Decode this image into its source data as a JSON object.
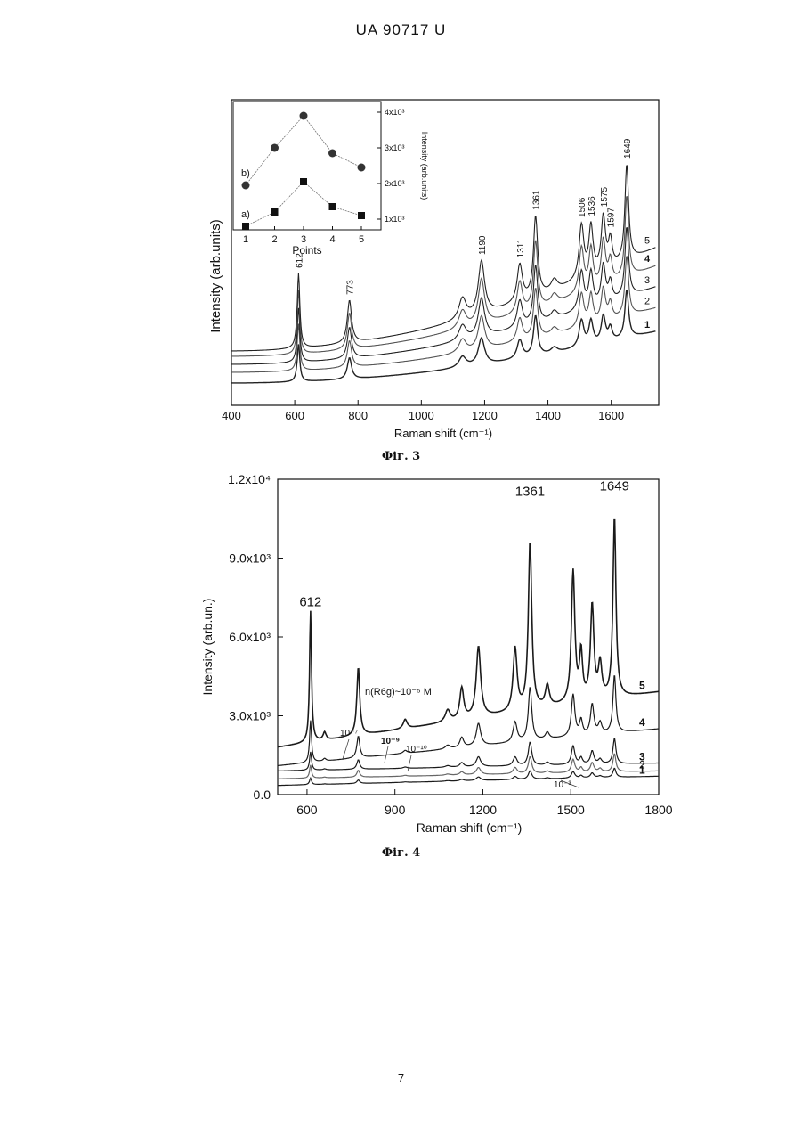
{
  "header": {
    "doc_id": "UA   90717   U"
  },
  "page_number": "7",
  "figures": [
    {
      "caption": "Фіг. 3"
    },
    {
      "caption": "Фіг. 4"
    }
  ],
  "chart_data": [
    {
      "type": "line",
      "xlabel": "Raman shift (cm⁻¹)",
      "ylabel": "Intensity (arb.units)",
      "xlim": [
        400,
        1750
      ],
      "x_ticks": [
        400,
        600,
        800,
        1000,
        1200,
        1400,
        1600
      ],
      "y_ticks": [],
      "peak_labels": [
        "612",
        "773",
        "1190",
        "1311",
        "1361",
        "1506",
        "1536",
        "1575",
        "1597",
        "1649"
      ],
      "series": [
        {
          "name": "1",
          "offset": 0.0,
          "scale": 1.0
        },
        {
          "name": "2",
          "offset": 0.04,
          "scale": 1.25
        },
        {
          "name": "3",
          "offset": 0.07,
          "scale": 1.45
        },
        {
          "name": "4",
          "offset": 0.1,
          "scale": 1.7
        },
        {
          "name": "5",
          "offset": 0.12,
          "scale": 2.0
        }
      ],
      "peaks": [
        {
          "x": 612,
          "h": 0.14,
          "w": 5
        },
        {
          "x": 773,
          "h": 0.08,
          "w": 8
        },
        {
          "x": 1130,
          "h": 0.04,
          "w": 14
        },
        {
          "x": 1190,
          "h": 0.1,
          "w": 12
        },
        {
          "x": 1311,
          "h": 0.07,
          "w": 10
        },
        {
          "x": 1361,
          "h": 0.15,
          "w": 8
        },
        {
          "x": 1420,
          "h": 0.02,
          "w": 12
        },
        {
          "x": 1506,
          "h": 0.1,
          "w": 9
        },
        {
          "x": 1536,
          "h": 0.09,
          "w": 8
        },
        {
          "x": 1575,
          "h": 0.1,
          "w": 8
        },
        {
          "x": 1597,
          "h": 0.05,
          "w": 7
        },
        {
          "x": 1649,
          "h": 0.18,
          "w": 7
        }
      ],
      "inset": {
        "type": "scatter",
        "xlabel": "Points",
        "ylabel": "Intensity (arb.units)",
        "x": [
          1,
          2,
          3,
          4,
          5
        ],
        "y_ticks": [
          "1x10³",
          "2x10³",
          "3x10³",
          "4x10³"
        ],
        "ylim": [
          700,
          4300
        ],
        "series": [
          {
            "name": "a)",
            "marker": "square",
            "values": [
              800,
              1200,
              2050,
              1350,
              1100
            ]
          },
          {
            "name": "b)",
            "marker": "circle",
            "values": [
              1950,
              3000,
              3900,
              2850,
              2450
            ]
          }
        ]
      }
    },
    {
      "type": "line",
      "xlabel": "Raman shift (cm⁻¹)",
      "ylabel": "Intensity (arb.un.)",
      "xlim": [
        500,
        1800
      ],
      "ylim": [
        0,
        12000
      ],
      "x_ticks": [
        600,
        900,
        1200,
        1500,
        1800
      ],
      "y_ticks": [
        {
          "value": 0,
          "label": "0.0"
        },
        {
          "value": 3000,
          "label": "3.0x10³"
        },
        {
          "value": 6000,
          "label": "6.0x10³"
        },
        {
          "value": 9000,
          "label": "9.0x10³"
        },
        {
          "value": 12000,
          "label": "1.2x10⁴"
        }
      ],
      "peak_labels": [
        "612",
        "1361",
        "1649"
      ],
      "annotations": [
        "n(R6g)~10⁻⁵ M",
        "10⁻⁷",
        "10⁻⁹",
        "10⁻¹⁰",
        "10⁻³"
      ],
      "series": [
        {
          "name": "1",
          "baseline": [
            350,
            700
          ],
          "scale": 0.05
        },
        {
          "name": "2",
          "baseline": [
            600,
            900
          ],
          "scale": 0.1
        },
        {
          "name": "3",
          "baseline": [
            900,
            1200
          ],
          "scale": 0.14
        },
        {
          "name": "4",
          "baseline": [
            1100,
            2500
          ],
          "scale": 0.32
        },
        {
          "name": "5",
          "baseline": [
            1800,
            3900
          ],
          "scale": 1.0
        }
      ],
      "peaks": [
        {
          "x": 612,
          "h": 5000,
          "w": 4
        },
        {
          "x": 660,
          "h": 300,
          "w": 6
        },
        {
          "x": 775,
          "h": 2600,
          "w": 6
        },
        {
          "x": 935,
          "h": 350,
          "w": 8
        },
        {
          "x": 1080,
          "h": 450,
          "w": 10
        },
        {
          "x": 1128,
          "h": 1200,
          "w": 8
        },
        {
          "x": 1185,
          "h": 2700,
          "w": 9
        },
        {
          "x": 1310,
          "h": 2400,
          "w": 8
        },
        {
          "x": 1361,
          "h": 6400,
          "w": 7
        },
        {
          "x": 1420,
          "h": 800,
          "w": 8
        },
        {
          "x": 1508,
          "h": 5000,
          "w": 7
        },
        {
          "x": 1535,
          "h": 1800,
          "w": 6
        },
        {
          "x": 1573,
          "h": 3600,
          "w": 7
        },
        {
          "x": 1600,
          "h": 1300,
          "w": 7
        },
        {
          "x": 1649,
          "h": 6900,
          "w": 6
        }
      ]
    }
  ]
}
